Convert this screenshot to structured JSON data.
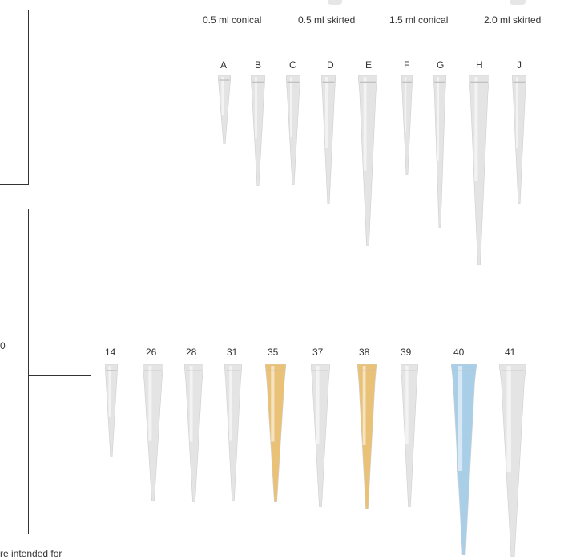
{
  "tubes": [
    "0.5 ml conical",
    "0.5 ml skirted",
    "1.5 ml conical",
    "2.0 ml skirted"
  ],
  "upper_tips": [
    "A",
    "B",
    "C",
    "D",
    "E",
    "F",
    "G",
    "H",
    "J"
  ],
  "lower_tips": [
    "14",
    "26",
    "28",
    "31",
    "35",
    "37",
    "38",
    "39",
    "40",
    "41"
  ],
  "edge_char": "0",
  "footer_text": "re intended for",
  "colors": {
    "clear_tip": "#e4e4e4",
    "amber_tip": "#e9c277",
    "blue_tip": "#a9cfe8",
    "line": "#333333"
  }
}
